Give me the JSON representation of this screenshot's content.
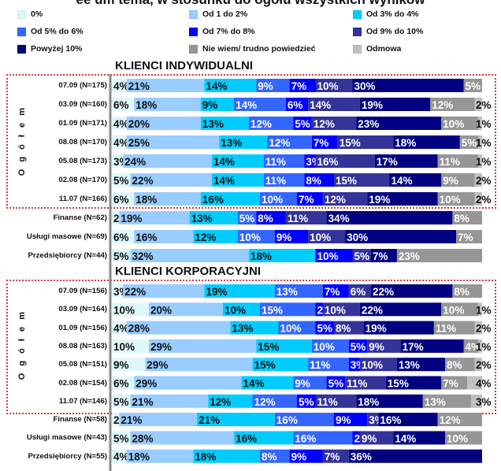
{
  "title": "ee um tema, w stosunku do ogółu wszystkich wyników",
  "legend": [
    {
      "name": "0%",
      "color": "#dff7fb"
    },
    {
      "name": "Od 1 do 2%",
      "color": "#99ccff"
    },
    {
      "name": "Od 3% do 4%",
      "color": "#00ccff"
    },
    {
      "name": "Od 5% do 6%",
      "color": "#3366ff"
    },
    {
      "name": "Od 7% do 8%",
      "color": "#0000ff"
    },
    {
      "name": "Od 9% do 10%",
      "color": "#333399"
    },
    {
      "name": "Powyżej 10%",
      "color": "#000080"
    },
    {
      "name": "Nie wiem/ trudno powiedzieć",
      "color": "#969696"
    },
    {
      "name": "Odmowa",
      "color": "#c0c0c0"
    }
  ],
  "sections": {
    "indywidualni": "KLIENCI INDYWIDUALNI",
    "korporacyjni": "KLIENCI KORPORACYJNI"
  },
  "group_label": "O g ó ł e m",
  "chart_data": {
    "type": "bar",
    "orientation": "horizontal-stacked-100",
    "series_names": [
      "0%",
      "Od 1 do 2%",
      "Od 3% do 4%",
      "Od 5% do 6%",
      "Od 7% do 8%",
      "Od 9% do 10%",
      "Powyżej 10%",
      "Nie wiem/ trudno powiedzieć",
      "Odmowa"
    ],
    "rows": [
      {
        "label": "07.09 (N=175)",
        "values": [
          4,
          21,
          14,
          9,
          7,
          10,
          30,
          5,
          0
        ]
      },
      {
        "label": "03.09 (N=160)",
        "values": [
          6,
          18,
          9,
          14,
          6,
          14,
          19,
          12,
          2
        ]
      },
      {
        "label": "01.09 (N=171)",
        "values": [
          4,
          20,
          13,
          12,
          5,
          12,
          23,
          10,
          1
        ]
      },
      {
        "label": "08.08 (N=170)",
        "values": [
          4,
          25,
          13,
          12,
          7,
          15,
          18,
          5,
          1
        ]
      },
      {
        "label": "05.08 (N=173)",
        "values": [
          3,
          24,
          14,
          11,
          3,
          16,
          17,
          11,
          1
        ]
      },
      {
        "label": "02.08 (N=170)",
        "values": [
          5,
          22,
          14,
          11,
          8,
          15,
          14,
          9,
          2
        ]
      },
      {
        "label": "11.07 (N=166)",
        "values": [
          6,
          18,
          16,
          10,
          7,
          12,
          19,
          10,
          2
        ]
      },
      {
        "label": "Finanse (N=62)",
        "values": [
          2,
          19,
          13,
          5,
          8,
          11,
          34,
          8,
          0
        ]
      },
      {
        "label": "Usługi masowe (N=69)",
        "values": [
          6,
          16,
          12,
          10,
          9,
          10,
          30,
          7,
          0
        ]
      },
      {
        "label": "Przedsiębiorcy (N=44)",
        "values": [
          5,
          32,
          18,
          0,
          10,
          5,
          7,
          23,
          0
        ],
        "note": ""
      },
      {
        "label": "07.09 (N=156)",
        "values": [
          3,
          22,
          19,
          13,
          7,
          6,
          22,
          8,
          0
        ]
      },
      {
        "label": "03.09 (N=164)",
        "values": [
          10,
          20,
          10,
          15,
          2,
          10,
          22,
          10,
          1
        ]
      },
      {
        "label": "01.09 (N=156)",
        "values": [
          4,
          28,
          13,
          10,
          5,
          8,
          19,
          11,
          2
        ]
      },
      {
        "label": "08.08 (N=163)",
        "values": [
          10,
          29,
          15,
          10,
          5,
          9,
          17,
          4,
          1
        ]
      },
      {
        "label": "05.08 (N=151)",
        "values": [
          9,
          29,
          15,
          11,
          3,
          10,
          13,
          8,
          2
        ]
      },
      {
        "label": "02.08 (N=154)",
        "values": [
          6,
          29,
          14,
          9,
          5,
          11,
          15,
          7,
          4
        ]
      },
      {
        "label": "11.07 (N=146)",
        "values": [
          5,
          21,
          12,
          12,
          5,
          11,
          18,
          13,
          3
        ]
      },
      {
        "label": "Finanse (N=58)",
        "values": [
          2,
          21,
          21,
          16,
          9,
          3,
          16,
          12,
          0
        ]
      },
      {
        "label": "Usługi masowe (N=43)",
        "values": [
          5,
          28,
          16,
          16,
          2,
          9,
          14,
          10,
          0
        ]
      },
      {
        "label": "Przedsiębiorcy (N=55)",
        "values": [
          4,
          18,
          18,
          8,
          9,
          7,
          36,
          0,
          0
        ]
      }
    ]
  }
}
